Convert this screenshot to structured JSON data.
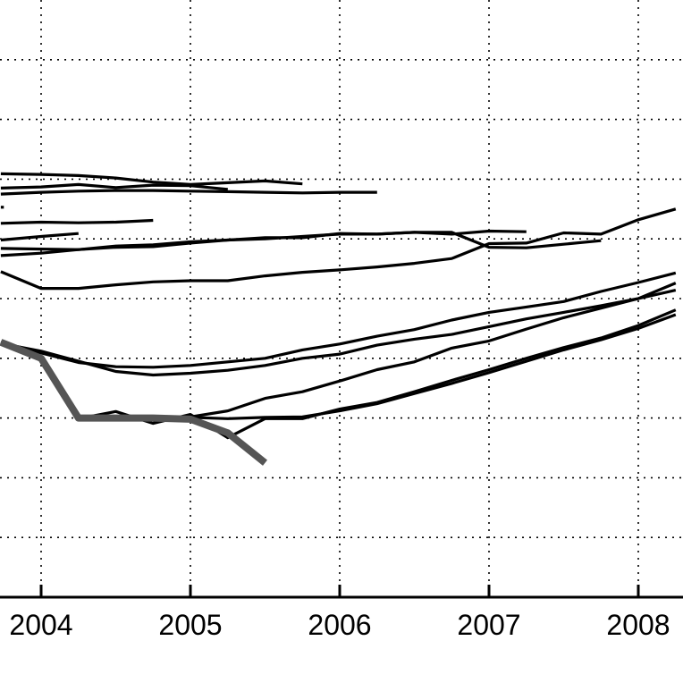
{
  "chart_data": {
    "type": "line",
    "title": "",
    "xlabel": "",
    "ylabel": "",
    "xlim": [
      2003.73,
      2008.25
    ],
    "ylim": [
      0,
      10
    ],
    "x_ticks": [
      2004,
      2005,
      2006,
      2007,
      2008
    ],
    "x_tick_labels": [
      "2004",
      "2005",
      "2006",
      "2007",
      "2008"
    ],
    "y_grid": [
      1,
      2,
      3,
      4,
      5,
      6,
      7,
      8,
      9
    ],
    "grid": true,
    "colors": {
      "series": "#000000",
      "highlight": "#555555"
    },
    "series": [
      {
        "x": [
          2003.73,
          2004.0,
          2004.25,
          2004.5,
          2004.75,
          2005.0,
          2005.25,
          2005.5,
          2005.75
        ],
        "y": [
          7.09,
          7.08,
          7.06,
          7.02,
          6.95,
          6.91,
          6.94,
          6.97,
          6.92
        ]
      },
      {
        "x": [
          2003.73,
          2004.0,
          2004.25,
          2004.5,
          2004.75,
          2005.0,
          2005.25
        ],
        "y": [
          6.85,
          6.87,
          6.91,
          6.86,
          6.9,
          6.89,
          6.83
        ]
      },
      {
        "x": [
          2003.73,
          2004.0,
          2004.25,
          2004.5,
          2004.75,
          2005.0,
          2005.25,
          2005.5,
          2005.75,
          2006.0,
          2006.25
        ],
        "y": [
          6.75,
          6.78,
          6.8,
          6.81,
          6.81,
          6.8,
          6.79,
          6.78,
          6.77,
          6.78,
          6.78
        ]
      },
      {
        "x": [
          2003.73,
          2003.75
        ],
        "y": [
          6.53,
          6.53
        ]
      },
      {
        "x": [
          2003.73,
          2004.0,
          2004.25,
          2004.5,
          2004.75
        ],
        "y": [
          6.26,
          6.28,
          6.27,
          6.28,
          6.31
        ]
      },
      {
        "x": [
          2003.73,
          2004.0,
          2004.25
        ],
        "y": [
          5.98,
          6.04,
          6.09
        ]
      },
      {
        "x": [
          2003.73,
          2004.0,
          2004.25,
          2004.5,
          2004.75,
          2005.0,
          2005.25,
          2005.5,
          2005.75,
          2006.0,
          2006.25,
          2006.5,
          2006.75,
          2007.0,
          2007.25
        ],
        "y": [
          5.84,
          5.83,
          5.82,
          5.86,
          5.87,
          5.93,
          5.98,
          6.02,
          6.02,
          6.09,
          6.08,
          6.11,
          6.08,
          6.13,
          6.12
        ]
      },
      {
        "x": [
          2003.73,
          2004.0,
          2004.25,
          2004.5,
          2004.75,
          2005.0,
          2005.25,
          2005.5,
          2005.75,
          2006.0,
          2006.25,
          2006.5,
          2006.75,
          2007.0,
          2007.25,
          2007.5,
          2007.75
        ],
        "y": [
          5.72,
          5.76,
          5.82,
          5.88,
          5.9,
          5.95,
          5.98,
          6.0,
          6.04,
          6.08,
          6.08,
          6.11,
          6.11,
          5.86,
          5.85,
          5.91,
          5.97
        ]
      },
      {
        "x": [
          2003.73,
          2004.0,
          2004.25,
          2004.5,
          2004.75,
          2005.0,
          2005.25,
          2005.5,
          2005.75,
          2006.0,
          2006.25,
          2006.5,
          2006.75,
          2007.0,
          2007.25,
          2007.5,
          2007.75,
          2008.0,
          2008.25
        ],
        "y": [
          5.45,
          5.17,
          5.17,
          5.23,
          5.28,
          5.3,
          5.3,
          5.38,
          5.44,
          5.48,
          5.53,
          5.59,
          5.67,
          5.92,
          5.93,
          6.1,
          6.08,
          6.32,
          6.5
        ]
      },
      {
        "x": [
          2003.73,
          2004.0,
          2004.25,
          2004.5,
          2004.75,
          2005.0,
          2005.25,
          2005.5,
          2005.75,
          2006.0,
          2006.25,
          2006.5,
          2006.75,
          2007.0,
          2007.25,
          2007.5,
          2007.75,
          2008.0,
          2008.25
        ],
        "y": [
          4.27,
          4.09,
          3.93,
          3.86,
          3.85,
          3.88,
          3.94,
          4.0,
          4.14,
          4.24,
          4.37,
          4.48,
          4.64,
          4.77,
          4.86,
          4.95,
          5.12,
          5.27,
          5.43
        ]
      },
      {
        "x": [
          2003.73,
          2004.0,
          2004.25,
          2004.5,
          2004.75,
          2005.0,
          2005.25,
          2005.5,
          2005.75,
          2006.0,
          2006.25,
          2006.5,
          2006.75,
          2007.0,
          2007.25,
          2007.5,
          2007.75,
          2008.0,
          2008.25
        ],
        "y": [
          4.25,
          4.12,
          3.95,
          3.78,
          3.72,
          3.75,
          3.8,
          3.88,
          4.0,
          4.07,
          4.22,
          4.32,
          4.4,
          4.53,
          4.66,
          4.77,
          4.88,
          5.0,
          5.26
        ]
      },
      {
        "x": [
          2004.75,
          2005.0,
          2005.25,
          2005.5,
          2005.75,
          2006.0,
          2006.25,
          2006.5,
          2006.75,
          2007.0,
          2007.25,
          2007.5,
          2007.75,
          2008.0,
          2008.25
        ],
        "y": [
          2.94,
          3.02,
          3.12,
          3.33,
          3.44,
          3.62,
          3.81,
          3.94,
          4.17,
          4.29,
          4.49,
          4.68,
          4.84,
          5.0,
          5.14
        ]
      },
      {
        "x": [
          2004.75,
          2005.0,
          2005.25,
          2005.5,
          2005.75,
          2006.0,
          2006.25,
          2006.5,
          2006.75,
          2007.0,
          2007.25,
          2007.5,
          2007.75,
          2008.0,
          2008.25
        ],
        "y": [
          3.02,
          3.01,
          2.99,
          3.01,
          3.02,
          3.12,
          3.24,
          3.41,
          3.58,
          3.76,
          3.95,
          4.14,
          4.31,
          4.5,
          4.73
        ]
      },
      {
        "x": [
          2004.25,
          2004.5,
          2004.75,
          2005.0,
          2005.25,
          2005.5,
          2005.75,
          2006.0,
          2006.25,
          2006.5,
          2006.75,
          2007.0,
          2007.25,
          2007.5,
          2007.75,
          2008.0,
          2008.25
        ],
        "y": [
          2.99,
          3.11,
          2.91,
          3.06,
          2.67,
          2.99,
          2.99,
          3.15,
          3.26,
          3.44,
          3.63,
          3.81,
          4.0,
          4.18,
          4.34,
          4.55,
          4.81
        ]
      },
      {
        "highlight": true,
        "x": [
          2003.73,
          2004.0,
          2004.25,
          2004.5,
          2004.75,
          2005.0,
          2005.25,
          2005.5
        ],
        "y": [
          4.27,
          4.0,
          3.0,
          3.0,
          3.0,
          2.98,
          2.75,
          2.25
        ]
      }
    ]
  }
}
